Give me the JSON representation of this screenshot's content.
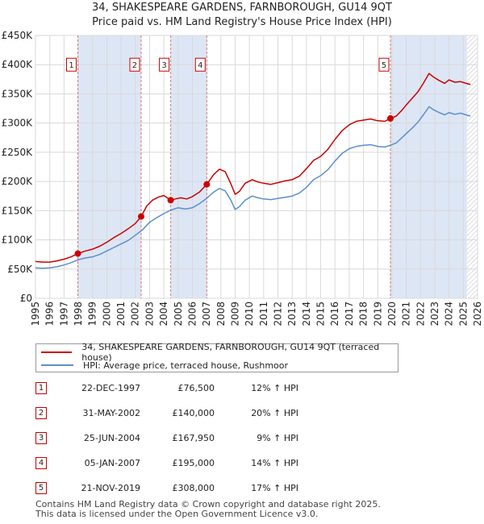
{
  "header": {
    "title_line1": "34, SHAKESPEARE GARDENS, FARNBOROUGH, GU14 9QT",
    "title_line2": "Price paid vs. HM Land Registry's House Price Index (HPI)"
  },
  "colors": {
    "property_line": "#cc0000",
    "hpi_line": "#5b8fcc",
    "shade": "#dde6f5",
    "grid": "#d9d9d9",
    "marker_box_border": "#cc0000",
    "vline": "#d47a7a"
  },
  "chart_data": {
    "type": "line",
    "title": "34, SHAKESPEARE GARDENS, FARNBOROUGH, GU14 9QT",
    "xlabel": "",
    "ylabel": "",
    "xlim": [
      1995,
      2026
    ],
    "ylim": [
      0,
      450000
    ],
    "grid": true,
    "y_ticks": [
      {
        "value": 0,
        "label": "£0"
      },
      {
        "value": 50000,
        "label": "£50K"
      },
      {
        "value": 100000,
        "label": "£100K"
      },
      {
        "value": 150000,
        "label": "£150K"
      },
      {
        "value": 200000,
        "label": "£200K"
      },
      {
        "value": 250000,
        "label": "£250K"
      },
      {
        "value": 300000,
        "label": "£300K"
      },
      {
        "value": 350000,
        "label": "£350K"
      },
      {
        "value": 400000,
        "label": "£400K"
      },
      {
        "value": 450000,
        "label": "£450K"
      }
    ],
    "x_ticks": [
      "1995",
      "1996",
      "1997",
      "1998",
      "1999",
      "2000",
      "2001",
      "2002",
      "2003",
      "2004",
      "2005",
      "2006",
      "2007",
      "2008",
      "2009",
      "2010",
      "2011",
      "2012",
      "2013",
      "2014",
      "2015",
      "2016",
      "2017",
      "2018",
      "2019",
      "2020",
      "2021",
      "2022",
      "2023",
      "2024",
      "2025",
      "2026"
    ],
    "shaded_ranges": [
      [
        1997.97,
        2002.41
      ],
      [
        2004.48,
        2007.01
      ],
      [
        2019.89,
        2025.25
      ]
    ],
    "hatched_range": [
      2025.25,
      2026
    ],
    "series": [
      {
        "name": "34, SHAKESPEARE GARDENS, FARNBOROUGH, GU14 9QT (terraced house)",
        "color": "#cc0000",
        "points": [
          [
            1995.0,
            63000
          ],
          [
            1995.5,
            62000
          ],
          [
            1996.0,
            62000
          ],
          [
            1996.5,
            64000
          ],
          [
            1997.0,
            67000
          ],
          [
            1997.5,
            71000
          ],
          [
            1997.97,
            76500
          ],
          [
            1998.5,
            81000
          ],
          [
            1999.0,
            84000
          ],
          [
            1999.5,
            89000
          ],
          [
            2000.0,
            96000
          ],
          [
            2000.5,
            104000
          ],
          [
            2001.0,
            111000
          ],
          [
            2001.5,
            119000
          ],
          [
            2002.0,
            128000
          ],
          [
            2002.41,
            140000
          ],
          [
            2002.8,
            158000
          ],
          [
            2003.2,
            168000
          ],
          [
            2003.6,
            173000
          ],
          [
            2004.0,
            176000
          ],
          [
            2004.48,
            167950
          ],
          [
            2004.8,
            170000
          ],
          [
            2005.2,
            172000
          ],
          [
            2005.6,
            170000
          ],
          [
            2006.0,
            174000
          ],
          [
            2006.5,
            182000
          ],
          [
            2007.01,
            195000
          ],
          [
            2007.5,
            212000
          ],
          [
            2007.9,
            221000
          ],
          [
            2008.3,
            217000
          ],
          [
            2008.7,
            196000
          ],
          [
            2009.0,
            178000
          ],
          [
            2009.3,
            183000
          ],
          [
            2009.7,
            197000
          ],
          [
            2010.2,
            203000
          ],
          [
            2010.6,
            199000
          ],
          [
            2011.0,
            197000
          ],
          [
            2011.5,
            195000
          ],
          [
            2012.0,
            198000
          ],
          [
            2012.5,
            201000
          ],
          [
            2013.0,
            203000
          ],
          [
            2013.5,
            209000
          ],
          [
            2014.0,
            222000
          ],
          [
            2014.5,
            236000
          ],
          [
            2015.0,
            243000
          ],
          [
            2015.5,
            255000
          ],
          [
            2016.0,
            272000
          ],
          [
            2016.5,
            287000
          ],
          [
            2017.0,
            297000
          ],
          [
            2017.5,
            303000
          ],
          [
            2018.0,
            305000
          ],
          [
            2018.5,
            307000
          ],
          [
            2019.0,
            304000
          ],
          [
            2019.5,
            303000
          ],
          [
            2019.89,
            308000
          ],
          [
            2020.3,
            312000
          ],
          [
            2020.7,
            322000
          ],
          [
            2021.0,
            331000
          ],
          [
            2021.4,
            342000
          ],
          [
            2021.8,
            353000
          ],
          [
            2022.2,
            368000
          ],
          [
            2022.6,
            385000
          ],
          [
            2022.9,
            379000
          ],
          [
            2023.3,
            373000
          ],
          [
            2023.7,
            368000
          ],
          [
            2024.0,
            374000
          ],
          [
            2024.4,
            370000
          ],
          [
            2024.8,
            371000
          ],
          [
            2025.2,
            368000
          ],
          [
            2025.5,
            366000
          ]
        ]
      },
      {
        "name": "HPI: Average price, terraced house, Rushmoor",
        "color": "#5b8fcc",
        "points": [
          [
            1995.0,
            52000
          ],
          [
            1995.5,
            51500
          ],
          [
            1996.0,
            52000
          ],
          [
            1996.5,
            54000
          ],
          [
            1997.0,
            57000
          ],
          [
            1997.5,
            61000
          ],
          [
            1998.0,
            66000
          ],
          [
            1998.5,
            69000
          ],
          [
            1999.0,
            71000
          ],
          [
            1999.5,
            75000
          ],
          [
            2000.0,
            81000
          ],
          [
            2000.5,
            87000
          ],
          [
            2001.0,
            93000
          ],
          [
            2001.5,
            99000
          ],
          [
            2002.0,
            108000
          ],
          [
            2002.5,
            117000
          ],
          [
            2003.0,
            130000
          ],
          [
            2003.5,
            138000
          ],
          [
            2004.0,
            145000
          ],
          [
            2004.5,
            151000
          ],
          [
            2005.0,
            155000
          ],
          [
            2005.5,
            153000
          ],
          [
            2006.0,
            155000
          ],
          [
            2006.5,
            162000
          ],
          [
            2007.0,
            171000
          ],
          [
            2007.5,
            182000
          ],
          [
            2007.9,
            188000
          ],
          [
            2008.3,
            184000
          ],
          [
            2008.7,
            168000
          ],
          [
            2009.0,
            152000
          ],
          [
            2009.3,
            157000
          ],
          [
            2009.7,
            168000
          ],
          [
            2010.2,
            175000
          ],
          [
            2010.6,
            172000
          ],
          [
            2011.0,
            170000
          ],
          [
            2011.5,
            169000
          ],
          [
            2012.0,
            171000
          ],
          [
            2012.5,
            173000
          ],
          [
            2013.0,
            175000
          ],
          [
            2013.5,
            180000
          ],
          [
            2014.0,
            190000
          ],
          [
            2014.5,
            203000
          ],
          [
            2015.0,
            210000
          ],
          [
            2015.5,
            220000
          ],
          [
            2016.0,
            235000
          ],
          [
            2016.5,
            248000
          ],
          [
            2017.0,
            256000
          ],
          [
            2017.5,
            260000
          ],
          [
            2018.0,
            262000
          ],
          [
            2018.5,
            263000
          ],
          [
            2019.0,
            260000
          ],
          [
            2019.5,
            259000
          ],
          [
            2019.89,
            262000
          ],
          [
            2020.3,
            266000
          ],
          [
            2020.7,
            275000
          ],
          [
            2021.0,
            282000
          ],
          [
            2021.4,
            291000
          ],
          [
            2021.8,
            301000
          ],
          [
            2022.2,
            314000
          ],
          [
            2022.6,
            328000
          ],
          [
            2022.9,
            323000
          ],
          [
            2023.3,
            318000
          ],
          [
            2023.7,
            314000
          ],
          [
            2024.0,
            318000
          ],
          [
            2024.4,
            315000
          ],
          [
            2024.8,
            317000
          ],
          [
            2025.2,
            314000
          ],
          [
            2025.5,
            312000
          ]
        ]
      }
    ],
    "sales": [
      {
        "label": "1",
        "x": 1997.97,
        "y": 76500
      },
      {
        "label": "2",
        "x": 2002.41,
        "y": 140000
      },
      {
        "label": "3",
        "x": 2004.48,
        "y": 167950
      },
      {
        "label": "4",
        "x": 2007.01,
        "y": 195000
      },
      {
        "label": "5",
        "x": 2019.89,
        "y": 308000
      }
    ],
    "marker_box_value": 400000
  },
  "legend": {
    "property_label": "34, SHAKESPEARE GARDENS, FARNBOROUGH, GU14 9QT (terraced house)",
    "hpi_label": "HPI: Average price, terraced house, Rushmoor"
  },
  "sales_table": [
    {
      "num": "1",
      "date": "22-DEC-1997",
      "price": "£76,500",
      "hpi": "12% ↑ HPI"
    },
    {
      "num": "2",
      "date": "31-MAY-2002",
      "price": "£140,000",
      "hpi": "20% ↑ HPI"
    },
    {
      "num": "3",
      "date": "25-JUN-2004",
      "price": "£167,950",
      "hpi": "9% ↑ HPI"
    },
    {
      "num": "4",
      "date": "05-JAN-2007",
      "price": "£195,000",
      "hpi": "14% ↑ HPI"
    },
    {
      "num": "5",
      "date": "21-NOV-2019",
      "price": "£308,000",
      "hpi": "17% ↑ HPI"
    }
  ],
  "footer": {
    "line1": "Contains HM Land Registry data © Crown copyright and database right 2025.",
    "line2": "This data is licensed under the Open Government Licence v3.0."
  }
}
